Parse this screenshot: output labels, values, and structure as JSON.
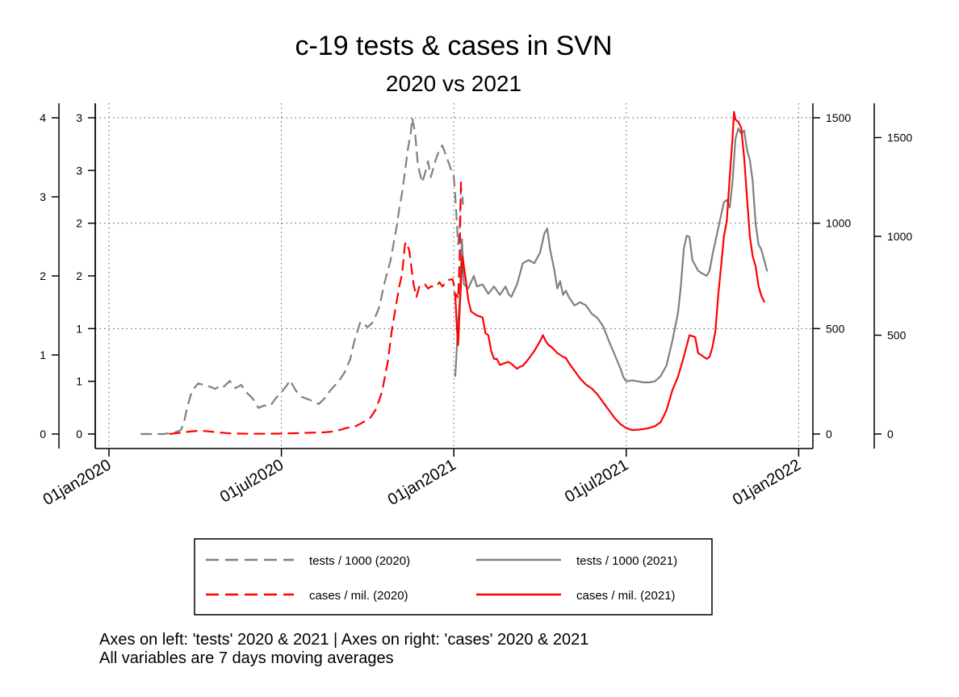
{
  "chart_data": {
    "type": "line",
    "title": "c-19 tests & cases in SVN",
    "subtitle": "2020 vs 2021",
    "x_tick_labels": [
      "01jan2020",
      "01jul2020",
      "01jan2021",
      "01jul2021",
      "01jan2022"
    ],
    "x_tick_months": [
      0,
      6,
      12,
      18,
      24
    ],
    "x_range_months": [
      0,
      24
    ],
    "axes": {
      "left_outer": {
        "range": [
          0,
          4
        ],
        "ticks": [
          0,
          1,
          2,
          3,
          4
        ],
        "labels": [
          "0",
          "1",
          "2",
          "3",
          "4"
        ],
        "variable": "tests 2020"
      },
      "left_inner": {
        "range": [
          0,
          3
        ],
        "ticks": [
          0,
          0.5,
          1,
          1.5,
          2,
          2.5,
          3
        ],
        "labels": [
          "0",
          "1",
          "1",
          "2",
          "2",
          "3",
          "3"
        ],
        "variable": "tests 2021"
      },
      "right_inner": {
        "range": [
          0,
          1500
        ],
        "ticks": [
          0,
          500,
          1000,
          1500
        ],
        "labels": [
          "0",
          "500",
          "1000",
          "1500"
        ],
        "variable": "cases 2020"
      },
      "right_outer": {
        "range": [
          0,
          1600
        ],
        "ticks": [
          0,
          500,
          1000,
          1500
        ],
        "labels": [
          "0",
          "500",
          "1000",
          "1500"
        ],
        "variable": "cases 2021"
      }
    },
    "grid": true,
    "legend_position": "bottom",
    "series": [
      {
        "name": "tests / 1000 (2020)",
        "axis": "left_outer",
        "style": "dashed",
        "color": "#808080",
        "points": [
          [
            1.1,
            0
          ],
          [
            1.9,
            0
          ],
          [
            2.3,
            0.02
          ],
          [
            2.5,
            0.05
          ],
          [
            2.6,
            0.13
          ],
          [
            2.7,
            0.3
          ],
          [
            2.8,
            0.44
          ],
          [
            2.9,
            0.55
          ],
          [
            3.1,
            0.64
          ],
          [
            3.3,
            0.62
          ],
          [
            3.5,
            0.6
          ],
          [
            3.7,
            0.57
          ],
          [
            3.9,
            0.62
          ],
          [
            4.0,
            0.6
          ],
          [
            4.2,
            0.67
          ],
          [
            4.4,
            0.58
          ],
          [
            4.6,
            0.62
          ],
          [
            4.8,
            0.52
          ],
          [
            5.0,
            0.45
          ],
          [
            5.2,
            0.33
          ],
          [
            5.4,
            0.36
          ],
          [
            5.6,
            0.35
          ],
          [
            5.8,
            0.45
          ],
          [
            6.0,
            0.53
          ],
          [
            6.2,
            0.62
          ],
          [
            6.3,
            0.68
          ],
          [
            6.5,
            0.55
          ],
          [
            6.7,
            0.47
          ],
          [
            7.0,
            0.43
          ],
          [
            7.3,
            0.38
          ],
          [
            7.5,
            0.45
          ],
          [
            7.7,
            0.55
          ],
          [
            8.0,
            0.67
          ],
          [
            8.2,
            0.78
          ],
          [
            8.4,
            0.95
          ],
          [
            8.5,
            1.12
          ],
          [
            8.6,
            1.25
          ],
          [
            8.75,
            1.42
          ],
          [
            8.85,
            1.4
          ],
          [
            9.0,
            1.35
          ],
          [
            9.2,
            1.42
          ],
          [
            9.4,
            1.6
          ],
          [
            9.6,
            1.93
          ],
          [
            9.8,
            2.2
          ],
          [
            10.0,
            2.6
          ],
          [
            10.1,
            2.85
          ],
          [
            10.2,
            3.05
          ],
          [
            10.3,
            3.32
          ],
          [
            10.4,
            3.6
          ],
          [
            10.5,
            3.8
          ],
          [
            10.55,
            4.0
          ],
          [
            10.65,
            3.82
          ],
          [
            10.75,
            3.4
          ],
          [
            10.9,
            3.18
          ],
          [
            11.0,
            3.3
          ],
          [
            11.1,
            3.45
          ],
          [
            11.2,
            3.25
          ],
          [
            11.35,
            3.45
          ],
          [
            11.5,
            3.6
          ],
          [
            11.6,
            3.65
          ],
          [
            11.75,
            3.5
          ],
          [
            11.9,
            3.35
          ],
          [
            12.0,
            3.25
          ],
          [
            12.05,
            3.0
          ],
          [
            12.1,
            2.7
          ],
          [
            12.15,
            2.4
          ],
          [
            12.2,
            2.6
          ],
          [
            12.25,
            3.12
          ],
          [
            12.3,
            3.0
          ],
          [
            12.32,
            2.9
          ]
        ]
      },
      {
        "name": "tests / 1000 (2021)",
        "axis": "left_inner",
        "style": "solid",
        "color": "#808080",
        "points": [
          [
            12.05,
            0.55
          ],
          [
            12.1,
            0.8
          ],
          [
            12.15,
            1.05
          ],
          [
            12.2,
            1.25
          ],
          [
            12.28,
            1.85
          ],
          [
            12.35,
            1.42
          ],
          [
            12.5,
            1.38
          ],
          [
            12.7,
            1.5
          ],
          [
            12.8,
            1.4
          ],
          [
            13.0,
            1.42
          ],
          [
            13.2,
            1.33
          ],
          [
            13.4,
            1.4
          ],
          [
            13.6,
            1.32
          ],
          [
            13.8,
            1.4
          ],
          [
            13.9,
            1.33
          ],
          [
            14.0,
            1.3
          ],
          [
            14.2,
            1.42
          ],
          [
            14.4,
            1.62
          ],
          [
            14.6,
            1.65
          ],
          [
            14.8,
            1.62
          ],
          [
            15.0,
            1.72
          ],
          [
            15.15,
            1.9
          ],
          [
            15.25,
            1.95
          ],
          [
            15.35,
            1.75
          ],
          [
            15.5,
            1.55
          ],
          [
            15.6,
            1.38
          ],
          [
            15.7,
            1.45
          ],
          [
            15.8,
            1.32
          ],
          [
            15.9,
            1.36
          ],
          [
            16.0,
            1.3
          ],
          [
            16.2,
            1.22
          ],
          [
            16.4,
            1.25
          ],
          [
            16.6,
            1.22
          ],
          [
            16.8,
            1.14
          ],
          [
            17.0,
            1.1
          ],
          [
            17.2,
            1.02
          ],
          [
            17.4,
            0.88
          ],
          [
            17.6,
            0.75
          ],
          [
            17.8,
            0.62
          ],
          [
            17.9,
            0.54
          ],
          [
            18.0,
            0.5
          ],
          [
            18.2,
            0.51
          ],
          [
            18.4,
            0.5
          ],
          [
            18.6,
            0.49
          ],
          [
            18.8,
            0.49
          ],
          [
            19.0,
            0.5
          ],
          [
            19.2,
            0.55
          ],
          [
            19.4,
            0.65
          ],
          [
            19.6,
            0.88
          ],
          [
            19.8,
            1.15
          ],
          [
            19.9,
            1.4
          ],
          [
            20.0,
            1.75
          ],
          [
            20.1,
            1.88
          ],
          [
            20.2,
            1.87
          ],
          [
            20.3,
            1.65
          ],
          [
            20.5,
            1.55
          ],
          [
            20.6,
            1.53
          ],
          [
            20.8,
            1.5
          ],
          [
            20.9,
            1.55
          ],
          [
            21.0,
            1.7
          ],
          [
            21.2,
            1.95
          ],
          [
            21.4,
            2.2
          ],
          [
            21.5,
            2.22
          ],
          [
            21.6,
            2.15
          ],
          [
            21.7,
            2.4
          ],
          [
            21.8,
            2.8
          ],
          [
            21.9,
            2.9
          ],
          [
            22.0,
            2.85
          ],
          [
            22.1,
            2.88
          ],
          [
            22.2,
            2.7
          ],
          [
            22.3,
            2.6
          ],
          [
            22.4,
            2.4
          ],
          [
            22.5,
            2.0
          ],
          [
            22.6,
            1.8
          ],
          [
            22.7,
            1.75
          ],
          [
            22.8,
            1.65
          ],
          [
            22.9,
            1.55
          ]
        ]
      },
      {
        "name": "cases / mil. (2020)",
        "axis": "right_inner",
        "style": "dashed",
        "color": "#ff0000",
        "points": [
          [
            2.1,
            0
          ],
          [
            2.3,
            3
          ],
          [
            2.6,
            8
          ],
          [
            2.9,
            13
          ],
          [
            3.2,
            16
          ],
          [
            3.5,
            12
          ],
          [
            3.8,
            8
          ],
          [
            4.2,
            3
          ],
          [
            4.8,
            1
          ],
          [
            5.5,
            1
          ],
          [
            6.0,
            2
          ],
          [
            6.5,
            4
          ],
          [
            7.0,
            6
          ],
          [
            7.5,
            8
          ],
          [
            7.8,
            12
          ],
          [
            8.0,
            18
          ],
          [
            8.3,
            30
          ],
          [
            8.6,
            38
          ],
          [
            8.9,
            60
          ],
          [
            9.1,
            78
          ],
          [
            9.3,
            120
          ],
          [
            9.5,
            200
          ],
          [
            9.7,
            340
          ],
          [
            9.85,
            500
          ],
          [
            10.0,
            620
          ],
          [
            10.1,
            700
          ],
          [
            10.2,
            760
          ],
          [
            10.3,
            900
          ],
          [
            10.35,
            910
          ],
          [
            10.45,
            870
          ],
          [
            10.6,
            710
          ],
          [
            10.7,
            650
          ],
          [
            10.8,
            700
          ],
          [
            10.9,
            700
          ],
          [
            11.0,
            710
          ],
          [
            11.1,
            690
          ],
          [
            11.2,
            700
          ],
          [
            11.4,
            700
          ],
          [
            11.5,
            720
          ],
          [
            11.6,
            700
          ],
          [
            11.8,
            730
          ],
          [
            11.95,
            735
          ],
          [
            12.0,
            710
          ],
          [
            12.05,
            650
          ],
          [
            12.1,
            660
          ],
          [
            12.15,
            640
          ],
          [
            12.2,
            820
          ],
          [
            12.25,
            1200
          ],
          [
            12.28,
            1180
          ]
        ]
      },
      {
        "name": "cases / mil. (2021)",
        "axis": "right_outer",
        "style": "solid",
        "color": "#ff0000",
        "points": [
          [
            12.05,
            700
          ],
          [
            12.1,
            550
          ],
          [
            12.15,
            450
          ],
          [
            12.2,
            620
          ],
          [
            12.3,
            900
          ],
          [
            12.4,
            800
          ],
          [
            12.5,
            680
          ],
          [
            12.6,
            620
          ],
          [
            12.8,
            600
          ],
          [
            13.0,
            590
          ],
          [
            13.1,
            510
          ],
          [
            13.2,
            500
          ],
          [
            13.3,
            420
          ],
          [
            13.4,
            380
          ],
          [
            13.5,
            380
          ],
          [
            13.6,
            350
          ],
          [
            13.8,
            360
          ],
          [
            13.9,
            365
          ],
          [
            14.0,
            355
          ],
          [
            14.2,
            330
          ],
          [
            14.3,
            340
          ],
          [
            14.4,
            345
          ],
          [
            14.6,
            380
          ],
          [
            14.8,
            420
          ],
          [
            15.0,
            470
          ],
          [
            15.1,
            500
          ],
          [
            15.2,
            470
          ],
          [
            15.3,
            450
          ],
          [
            15.4,
            440
          ],
          [
            15.6,
            410
          ],
          [
            15.8,
            390
          ],
          [
            15.9,
            385
          ],
          [
            16.0,
            360
          ],
          [
            16.2,
            320
          ],
          [
            16.4,
            280
          ],
          [
            16.6,
            250
          ],
          [
            16.8,
            230
          ],
          [
            17.0,
            200
          ],
          [
            17.2,
            160
          ],
          [
            17.4,
            120
          ],
          [
            17.6,
            80
          ],
          [
            17.8,
            50
          ],
          [
            18.0,
            30
          ],
          [
            18.2,
            20
          ],
          [
            18.4,
            22
          ],
          [
            18.6,
            25
          ],
          [
            18.8,
            30
          ],
          [
            19.0,
            40
          ],
          [
            19.2,
            60
          ],
          [
            19.4,
            120
          ],
          [
            19.6,
            220
          ],
          [
            19.8,
            290
          ],
          [
            20.0,
            390
          ],
          [
            20.2,
            500
          ],
          [
            20.4,
            490
          ],
          [
            20.5,
            410
          ],
          [
            20.6,
            400
          ],
          [
            20.8,
            380
          ],
          [
            20.9,
            390
          ],
          [
            21.0,
            440
          ],
          [
            21.1,
            520
          ],
          [
            21.2,
            700
          ],
          [
            21.3,
            850
          ],
          [
            21.4,
            1000
          ],
          [
            21.5,
            1080
          ],
          [
            21.6,
            1300
          ],
          [
            21.7,
            1500
          ],
          [
            21.75,
            1630
          ],
          [
            21.8,
            1590
          ],
          [
            21.9,
            1580
          ],
          [
            22.0,
            1550
          ],
          [
            22.1,
            1400
          ],
          [
            22.2,
            1200
          ],
          [
            22.3,
            1000
          ],
          [
            22.4,
            900
          ],
          [
            22.5,
            850
          ],
          [
            22.6,
            750
          ],
          [
            22.7,
            700
          ],
          [
            22.8,
            670
          ]
        ]
      }
    ],
    "notes": [
      "Axes on left: 'tests' 2020 & 2021 | Axes on right: 'cases' 2020 & 2021",
      "All variables are 7 days moving averages"
    ]
  }
}
